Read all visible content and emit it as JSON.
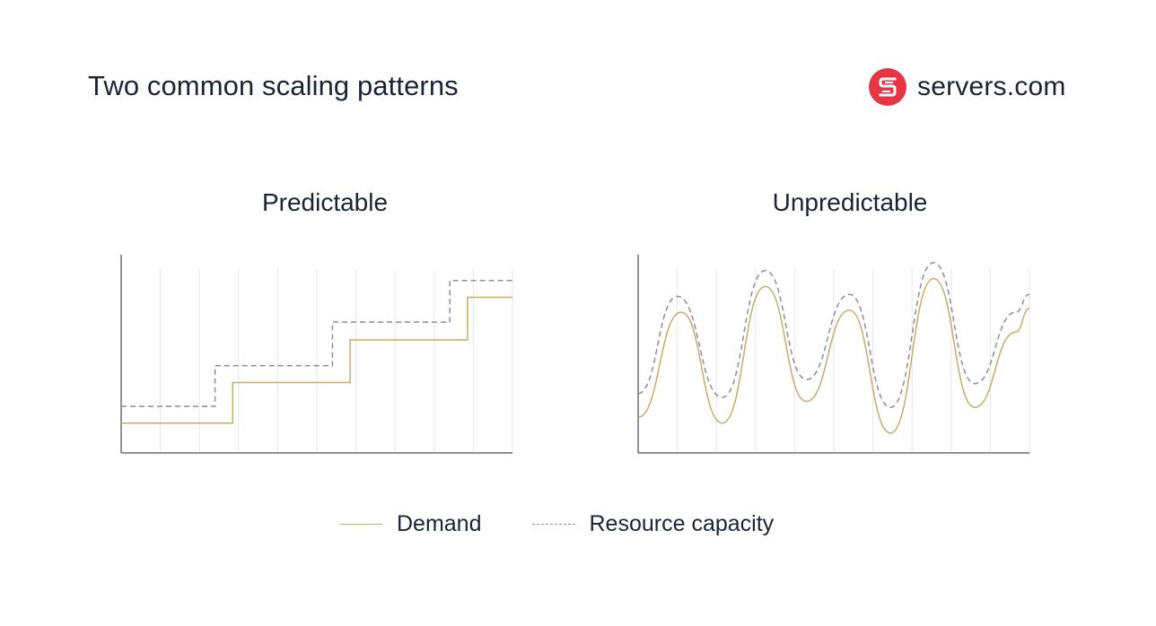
{
  "header": {
    "title": "Two common scaling patterns",
    "logo_text": "servers.com"
  },
  "colors": {
    "demand": "#c9ab69",
    "capacity": "#8a8f99",
    "axis": "#6b6f78",
    "grid": "#e6e6e6",
    "brand": "#e63544"
  },
  "chart_data": [
    {
      "type": "line",
      "title": "Predictable",
      "xlabel": "",
      "ylabel": "",
      "grid": true,
      "xlim": [
        0,
        10
      ],
      "ylim": [
        0,
        10
      ],
      "series": [
        {
          "name": "Demand",
          "style": "solid",
          "shape": "step",
          "x": [
            0,
            2.85,
            2.85,
            5.85,
            5.85,
            8.85,
            8.85,
            10
          ],
          "y": [
            1.5,
            1.5,
            3.55,
            3.55,
            5.7,
            5.7,
            7.85,
            7.85
          ]
        },
        {
          "name": "Resource capacity",
          "style": "dashed",
          "shape": "step",
          "x": [
            0,
            2.4,
            2.4,
            5.4,
            5.4,
            8.4,
            8.4,
            10
          ],
          "y": [
            2.35,
            2.35,
            4.4,
            4.4,
            6.6,
            6.6,
            8.7,
            8.7
          ]
        }
      ]
    },
    {
      "type": "line",
      "title": "Unpredictable",
      "xlabel": "",
      "ylabel": "",
      "grid": true,
      "xlim": [
        0,
        10
      ],
      "ylim": [
        0,
        10
      ],
      "series": [
        {
          "name": "Demand",
          "style": "solid",
          "shape": "smooth",
          "x": [
            0,
            1.1,
            2.15,
            3.25,
            4.3,
            5.4,
            6.45,
            7.55,
            8.6,
            9.65,
            10
          ],
          "y": [
            1.8,
            7.1,
            1.5,
            8.4,
            2.6,
            7.2,
            1.0,
            8.8,
            2.3,
            6.1,
            7.3
          ]
        },
        {
          "name": "Resource capacity",
          "style": "dashed",
          "shape": "smooth",
          "x": [
            0,
            1.0,
            2.15,
            3.25,
            4.3,
            5.4,
            6.45,
            7.55,
            8.6,
            9.65,
            10
          ],
          "y": [
            3.0,
            7.9,
            2.8,
            9.2,
            3.7,
            8.0,
            2.3,
            9.6,
            3.5,
            7.1,
            8.0
          ]
        }
      ]
    }
  ],
  "legend": [
    {
      "key": "demand",
      "label": "Demand"
    },
    {
      "key": "capacity",
      "label": "Resource capacity"
    }
  ]
}
